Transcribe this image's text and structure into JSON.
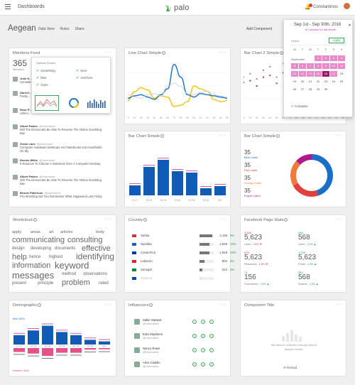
{
  "app": {
    "nav_label": "Dashboards",
    "logo_text": "palo",
    "logo_sup": "alto",
    "user_name": "Constantinos"
  },
  "page": {
    "title": "Aegean",
    "links": [
      "Data View",
      "Rules",
      "Share"
    ],
    "add_component": "Add Component"
  },
  "date_picker": {
    "range": "Sep 1st - Sep 30th, 2016",
    "compare_label": "Compare to Last Month",
    "select_label": "Select",
    "apply_label": "Apply",
    "weekdays": [
      "M",
      "T",
      "W",
      "T",
      "F",
      "S",
      "S"
    ],
    "month_label": "September",
    "days": [
      "",
      "",
      "",
      "1",
      "2",
      "3",
      "4",
      "5",
      "6",
      "7",
      "8",
      "9",
      "10",
      "11",
      "12",
      "13",
      "14",
      "15",
      "16",
      "17",
      "18",
      "19",
      "20",
      "21",
      "22",
      "23",
      "24",
      "25",
      "26",
      "27",
      "28",
      "29",
      "30",
      "",
      ""
    ],
    "compare_toggle": "Compare"
  },
  "mentions": {
    "title": "Mentions Feed",
    "count": "365",
    "count_label": "Mentions",
    "popup_title": "Options Screen",
    "options": [
      "Something",
      "Else",
      "Goes",
      "Here",
      "And here"
    ],
    "feed": [
      {
        "name": "Julie H...",
        "handle": "",
        "text": "Unmask..."
      },
      {
        "name": "Darrell...",
        "handle": "",
        "text": "Pretty... That Co..."
      },
      {
        "name": "Rose P...",
        "handle": "",
        "text": "Unlimi..."
      },
      {
        "name": "Albert Parker",
        "handle": "@Username",
        "text": "Will The Democrats Be Able To Reverse The Online Gambling Ban"
      },
      {
        "name": "Oscar Lane",
        "handle": "@Username",
        "text": "Computer Hardware Desktops And Notebooks And Handhelds Oh My"
      },
      {
        "name": "Dennis Willis",
        "handle": "@Username",
        "text": "5 Reasons To Choose A Notebook Over A Computer Desktop"
      },
      {
        "name": "Albert Parker",
        "handle": "@Username",
        "text": "Will The Democrats Be Able To Reverse The Online Gambling Ban"
      },
      {
        "name": "Bessie Patterson",
        "handle": "@Username",
        "text": "Pro Wrestling Did You Remember What Happened Last Friday"
      }
    ]
  },
  "line_chart": {
    "title": "Line Chart Simple"
  },
  "bar_chart2": {
    "title": "Bar Chart 2 Simple"
  },
  "bar_chart": {
    "title": "Bar Chart Simple"
  },
  "donut": {
    "title": "Bar Chart Simple",
    "items": [
      {
        "value": "35",
        "label": "Blue Label",
        "color": "#1a6fc6"
      },
      {
        "value": "35",
        "label": "Red Label",
        "color": "#e0403d"
      },
      {
        "value": "35",
        "label": "Orange Label",
        "color": "#f0793b"
      },
      {
        "value": "35",
        "label": "Purple Label",
        "color": "#b0198a"
      }
    ]
  },
  "wordcloud": {
    "title": "Wordcloud",
    "words": [
      "apply",
      "areas",
      "art",
      "articles",
      "body",
      "communicating",
      "consulting",
      "design",
      "developing",
      "documents",
      "effective",
      "help",
      "hence",
      "highest",
      "identifying",
      "information",
      "keyword",
      "messages",
      "method",
      "observations",
      "present",
      "principle",
      "problem",
      "rated"
    ]
  },
  "country": {
    "title": "Country",
    "rows": [
      {
        "name": "Serbia",
        "value": "2,148",
        "pct": "5%",
        "flag": "#c6363c"
      },
      {
        "name": "Namibia",
        "value": "1,848",
        "pct": "23%",
        "flag": "#1a5fb4"
      },
      {
        "name": "Costa Rica",
        "value": "1,818",
        "pct": "23%",
        "flag": "#0038a8"
      },
      {
        "name": "Lebanon",
        "value": "804",
        "pct": "4%",
        "flag": "#ed1c24"
      },
      {
        "name": "Senegal",
        "value": "512",
        "pct": "2%",
        "flag": "#00853f"
      },
      {
        "name": "Moldova",
        "value": "",
        "pct": "",
        "flag": "#0046ae"
      }
    ]
  },
  "facebook": {
    "title": "Facebook Page Stats",
    "stats": [
      {
        "small": "3,456",
        "value": "5,623",
        "label": "Likes",
        "delta": "1.5%",
        "dir": "dn"
      },
      {
        "small": "456",
        "value": "568",
        "label": "Likes",
        "delta": "1.5%",
        "dir": "up"
      },
      {
        "small": "876",
        "value": "5,623",
        "label": "Reactions",
        "delta": "1.5%",
        "dir": "dn"
      },
      {
        "small": "4,235",
        "value": "5,623",
        "label": "Posts",
        "delta": "1.5%",
        "dir": "up"
      },
      {
        "small": "74",
        "value": "156",
        "label": "Comments",
        "delta": "1.5%",
        "dir": "up"
      },
      {
        "small": "345",
        "value": "568",
        "label": "Shares",
        "delta": "1.5%",
        "dir": "up"
      }
    ]
  },
  "demographic": {
    "title": "Demographic",
    "men_label": "Men 30%",
    "women_label": "Women 10%"
  },
  "influencers": {
    "title": "Influencers",
    "rows": [
      {
        "name": "Sallie Stewart",
        "handle": "@Username"
      },
      {
        "name": "Eula Stephens",
        "handle": "@Username"
      },
      {
        "name": "Nancy Rowe",
        "handle": "@Username"
      },
      {
        "name": "Alice Castillo",
        "handle": "@Username"
      }
    ]
  },
  "component": {
    "title": "Component Title",
    "empty_text": "We haven't collected enough data to display results.",
    "reload": "Reload"
  },
  "chart_data": [
    {
      "type": "line",
      "title": "Line Chart Simple",
      "x": [
        "00",
        "10",
        "20",
        "30",
        "40",
        "50",
        "60",
        "70",
        "80",
        "90",
        "00",
        "10",
        "20",
        "30",
        "40",
        "50"
      ],
      "series": [
        {
          "color": "#f1c40f",
          "values": [
            20,
            35,
            42,
            38,
            24,
            28,
            26,
            10,
            12,
            18,
            45,
            40,
            36,
            22,
            18,
            20
          ]
        },
        {
          "color": "#1a6fc6",
          "values": [
            24,
            28,
            30,
            26,
            22,
            30,
            40,
            82,
            60,
            30,
            26,
            32,
            30,
            28,
            26,
            24
          ]
        },
        {
          "color": "#cccccc",
          "values": [
            30,
            26,
            24,
            30,
            32,
            28,
            45,
            50,
            44,
            32,
            30,
            34,
            36,
            30,
            28,
            26
          ]
        }
      ],
      "ylim": [
        0,
        90
      ]
    },
    {
      "type": "scatter",
      "title": "Bar Chart 2 Simple",
      "x": [
        "00",
        "10",
        "20",
        "30",
        "40",
        "50",
        "60",
        "70",
        "80",
        "90",
        "00",
        "10",
        "20",
        "30",
        "40",
        "50"
      ],
      "series": [
        {
          "color": "#b0198a",
          "values": [
            34,
            36,
            30,
            40,
            42,
            33,
            45,
            35,
            46,
            40,
            36,
            38,
            40,
            36,
            34,
            32
          ]
        },
        {
          "color": "#888888",
          "values": [
            40,
            44,
            38,
            48,
            52,
            40,
            56,
            44,
            54,
            50,
            44,
            48,
            50,
            44,
            42,
            40
          ]
        }
      ],
      "ylim": [
        0,
        60
      ]
    },
    {
      "type": "bar",
      "title": "Bar Chart Simple",
      "categories": [
        "13-17",
        "18-24",
        "25-34",
        "35-44",
        "45-54",
        "55-64",
        "65+"
      ],
      "values": [
        14,
        40,
        50,
        34,
        32,
        10,
        13
      ],
      "ylim": [
        0,
        60
      ]
    },
    {
      "type": "pie",
      "title": "Bar Chart Simple",
      "categories": [
        "Blue Label",
        "Red Label",
        "Orange Label",
        "Purple Label"
      ],
      "values": [
        35,
        35,
        35,
        35
      ]
    },
    {
      "type": "bar",
      "title": "Demographic",
      "categories": [
        "13-17",
        "18-24",
        "25-34",
        "35-44",
        "45-54",
        "55-64",
        "65+"
      ],
      "series": [
        {
          "name": "Men",
          "values": [
            12,
            18,
            24,
            16,
            12,
            6,
            4
          ]
        },
        {
          "name": "Women",
          "values": [
            10,
            14,
            20,
            12,
            12,
            4,
            3
          ]
        }
      ]
    }
  ]
}
